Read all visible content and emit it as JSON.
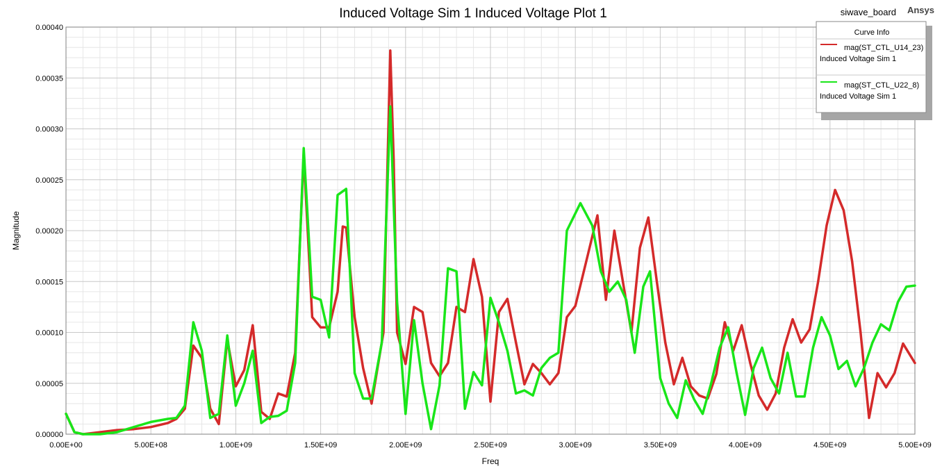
{
  "header": {
    "design_name": "siwave_board",
    "brand": "Ansys"
  },
  "legend": {
    "title": "Curve Info"
  },
  "colors": {
    "series_1": "#d42a2a",
    "series_2": "#19e619",
    "grid_major": "#c8c8c8",
    "grid_minor": "#e6e6e6"
  },
  "chart_data": {
    "type": "line",
    "title": "Induced Voltage Sim 1 Induced Voltage Plot 1",
    "xlabel": "Freq",
    "ylabel": "Magnitude",
    "xlim": [
      0,
      5000000000
    ],
    "ylim": [
      0,
      0.0004
    ],
    "grid": true,
    "legend_position": "top-right",
    "x_ticks": [
      0,
      500000000,
      1000000000,
      1500000000,
      2000000000,
      2500000000,
      3000000000,
      3500000000,
      4000000000,
      4500000000,
      5000000000
    ],
    "x_tick_labels": [
      "0.00E+00",
      "5.00E+08",
      "1.00E+09",
      "1.50E+09",
      "2.00E+09",
      "2.50E+09",
      "3.00E+09",
      "3.50E+09",
      "4.00E+09",
      "4.50E+09",
      "5.00E+09"
    ],
    "y_ticks": [
      0,
      5e-05,
      0.0001,
      0.00015,
      0.0002,
      0.00025,
      0.0003,
      0.00035,
      0.0004
    ],
    "y_tick_labels": [
      "0.00000",
      "0.00005",
      "0.00010",
      "0.00015",
      "0.00020",
      "0.00025",
      "0.00030",
      "0.00035",
      "0.00040"
    ],
    "series": [
      {
        "name": "mag(ST_CTL_U14_23)",
        "subname": "Induced Voltage Sim 1",
        "color": "#d42a2a",
        "points": [
          [
            0,
            2e-05
          ],
          [
            50000000,
            2e-06
          ],
          [
            100000000,
            0.0
          ],
          [
            200000000,
            2e-06
          ],
          [
            300000000,
            4e-06
          ],
          [
            400000000,
            5e-06
          ],
          [
            500000000,
            7e-06
          ],
          [
            600000000,
            1.1e-05
          ],
          [
            650000000,
            1.5e-05
          ],
          [
            700000000,
            2.5e-05
          ],
          [
            750000000,
            8.7e-05
          ],
          [
            800000000,
            7.5e-05
          ],
          [
            850000000,
            2.5e-05
          ],
          [
            900000000,
            1e-05
          ],
          [
            950000000,
            9.3e-05
          ],
          [
            1000000000,
            4.7e-05
          ],
          [
            1050000000,
            6.3e-05
          ],
          [
            1100000000,
            0.000107
          ],
          [
            1150000000,
            2.2e-05
          ],
          [
            1200000000,
            1.5e-05
          ],
          [
            1250000000,
            4e-05
          ],
          [
            1300000000,
            3.7e-05
          ],
          [
            1350000000,
            8e-05
          ],
          [
            1400000000,
            0.000275
          ],
          [
            1450000000,
            0.000115
          ],
          [
            1500000000,
            0.000105
          ],
          [
            1550000000,
            0.000105
          ],
          [
            1600000000,
            0.00014
          ],
          [
            1630000000,
            0.000204
          ],
          [
            1650000000,
            0.000203
          ],
          [
            1700000000,
            0.000115
          ],
          [
            1750000000,
            6.5e-05
          ],
          [
            1800000000,
            3e-05
          ],
          [
            1870000000,
            0.0001
          ],
          [
            1910000000,
            0.000377
          ],
          [
            1930000000,
            0.000269
          ],
          [
            1950000000,
            0.0001
          ],
          [
            2000000000,
            6.9e-05
          ],
          [
            2050000000,
            0.000125
          ],
          [
            2100000000,
            0.00012
          ],
          [
            2150000000,
            7e-05
          ],
          [
            2200000000,
            5.7e-05
          ],
          [
            2250000000,
            7e-05
          ],
          [
            2300000000,
            0.000125
          ],
          [
            2350000000,
            0.00012
          ],
          [
            2400000000,
            0.000172
          ],
          [
            2450000000,
            0.000135
          ],
          [
            2500000000,
            3.2e-05
          ],
          [
            2550000000,
            0.00012
          ],
          [
            2600000000,
            0.000133
          ],
          [
            2650000000,
            9e-05
          ],
          [
            2700000000,
            4.9e-05
          ],
          [
            2750000000,
            6.9e-05
          ],
          [
            2800000000,
            6e-05
          ],
          [
            2850000000,
            4.9e-05
          ],
          [
            2900000000,
            6e-05
          ],
          [
            2950000000,
            0.000115
          ],
          [
            3000000000,
            0.000126
          ],
          [
            3050000000,
            0.00016
          ],
          [
            3130000000,
            0.000215
          ],
          [
            3180000000,
            0.000132
          ],
          [
            3230000000,
            0.0002
          ],
          [
            3280000000,
            0.00015
          ],
          [
            3330000000,
            0.0001
          ],
          [
            3380000000,
            0.000183
          ],
          [
            3430000000,
            0.000213
          ],
          [
            3480000000,
            0.00015
          ],
          [
            3530000000,
            9e-05
          ],
          [
            3580000000,
            4.9e-05
          ],
          [
            3630000000,
            7.5e-05
          ],
          [
            3680000000,
            4.7e-05
          ],
          [
            3730000000,
            3.8e-05
          ],
          [
            3780000000,
            3.5e-05
          ],
          [
            3830000000,
            5.9e-05
          ],
          [
            3880000000,
            0.00011
          ],
          [
            3930000000,
            8.2e-05
          ],
          [
            3980000000,
            0.000107
          ],
          [
            4030000000,
            7e-05
          ],
          [
            4080000000,
            3.8e-05
          ],
          [
            4130000000,
            2.4e-05
          ],
          [
            4180000000,
            4e-05
          ],
          [
            4230000000,
            8.5e-05
          ],
          [
            4280000000,
            0.000113
          ],
          [
            4330000000,
            9e-05
          ],
          [
            4380000000,
            0.000103
          ],
          [
            4430000000,
            0.00015
          ],
          [
            4480000000,
            0.000205
          ],
          [
            4530000000,
            0.00024
          ],
          [
            4580000000,
            0.00022
          ],
          [
            4630000000,
            0.00017
          ],
          [
            4680000000,
            0.0001
          ],
          [
            4730000000,
            1.6e-05
          ],
          [
            4780000000,
            6e-05
          ],
          [
            4830000000,
            4.6e-05
          ],
          [
            4880000000,
            6e-05
          ],
          [
            4930000000,
            8.9e-05
          ],
          [
            5000000000,
            7e-05
          ]
        ]
      },
      {
        "name": "mag(ST_CTL_U22_8)",
        "subname": "Induced Voltage Sim 1",
        "color": "#19e619",
        "points": [
          [
            0,
            2e-05
          ],
          [
            50000000,
            2e-06
          ],
          [
            100000000,
            0.0
          ],
          [
            200000000,
            0.0
          ],
          [
            300000000,
            2e-06
          ],
          [
            400000000,
            7e-06
          ],
          [
            500000000,
            1.2e-05
          ],
          [
            600000000,
            1.5e-05
          ],
          [
            650000000,
            1.6e-05
          ],
          [
            700000000,
            2.8e-05
          ],
          [
            750000000,
            0.00011
          ],
          [
            800000000,
            8.2e-05
          ],
          [
            850000000,
            1.6e-05
          ],
          [
            900000000,
            2e-05
          ],
          [
            950000000,
            9.7e-05
          ],
          [
            1000000000,
            2.8e-05
          ],
          [
            1050000000,
            5e-05
          ],
          [
            1100000000,
            8.2e-05
          ],
          [
            1150000000,
            1.1e-05
          ],
          [
            1200000000,
            1.7e-05
          ],
          [
            1250000000,
            1.8e-05
          ],
          [
            1300000000,
            2.3e-05
          ],
          [
            1350000000,
            7e-05
          ],
          [
            1400000000,
            0.000281
          ],
          [
            1450000000,
            0.000135
          ],
          [
            1500000000,
            0.000132
          ],
          [
            1550000000,
            9.5e-05
          ],
          [
            1600000000,
            0.000235
          ],
          [
            1650000000,
            0.000241
          ],
          [
            1700000000,
            6e-05
          ],
          [
            1750000000,
            3.5e-05
          ],
          [
            1800000000,
            3.5e-05
          ],
          [
            1860000000,
            9e-05
          ],
          [
            1910000000,
            0.000322
          ],
          [
            1950000000,
            0.00013
          ],
          [
            2000000000,
            2e-05
          ],
          [
            2050000000,
            0.000112
          ],
          [
            2100000000,
            5e-05
          ],
          [
            2150000000,
            5e-06
          ],
          [
            2200000000,
            4.8e-05
          ],
          [
            2250000000,
            0.000163
          ],
          [
            2300000000,
            0.00016
          ],
          [
            2350000000,
            2.5e-05
          ],
          [
            2400000000,
            6.1e-05
          ],
          [
            2450000000,
            4.8e-05
          ],
          [
            2500000000,
            0.000134
          ],
          [
            2550000000,
            0.00011
          ],
          [
            2600000000,
            8.2e-05
          ],
          [
            2650000000,
            4e-05
          ],
          [
            2700000000,
            4.3e-05
          ],
          [
            2750000000,
            3.8e-05
          ],
          [
            2800000000,
            6.5e-05
          ],
          [
            2850000000,
            7.5e-05
          ],
          [
            2900000000,
            8e-05
          ],
          [
            2950000000,
            0.0002
          ],
          [
            3030000000,
            0.000227
          ],
          [
            3100000000,
            0.000205
          ],
          [
            3150000000,
            0.00016
          ],
          [
            3200000000,
            0.00014
          ],
          [
            3250000000,
            0.00015
          ],
          [
            3300000000,
            0.000132
          ],
          [
            3350000000,
            8e-05
          ],
          [
            3400000000,
            0.000145
          ],
          [
            3440000000,
            0.00016
          ],
          [
            3500000000,
            5.5e-05
          ],
          [
            3550000000,
            3e-05
          ],
          [
            3600000000,
            1.6e-05
          ],
          [
            3650000000,
            5.3e-05
          ],
          [
            3700000000,
            3.4e-05
          ],
          [
            3750000000,
            2e-05
          ],
          [
            3800000000,
            5e-05
          ],
          [
            3850000000,
            8.5e-05
          ],
          [
            3900000000,
            0.000105
          ],
          [
            3950000000,
            6e-05
          ],
          [
            4000000000,
            1.9e-05
          ],
          [
            4050000000,
            6.5e-05
          ],
          [
            4100000000,
            8.5e-05
          ],
          [
            4150000000,
            5.5e-05
          ],
          [
            4200000000,
            4e-05
          ],
          [
            4250000000,
            8e-05
          ],
          [
            4300000000,
            3.7e-05
          ],
          [
            4350000000,
            3.7e-05
          ],
          [
            4400000000,
            8.5e-05
          ],
          [
            4450000000,
            0.000115
          ],
          [
            4500000000,
            9.7e-05
          ],
          [
            4550000000,
            6.4e-05
          ],
          [
            4600000000,
            7.2e-05
          ],
          [
            4650000000,
            4.7e-05
          ],
          [
            4700000000,
            6.5e-05
          ],
          [
            4750000000,
            9e-05
          ],
          [
            4800000000,
            0.000108
          ],
          [
            4850000000,
            0.000102
          ],
          [
            4900000000,
            0.00013
          ],
          [
            4950000000,
            0.000145
          ],
          [
            5000000000,
            0.000146
          ]
        ]
      }
    ]
  }
}
